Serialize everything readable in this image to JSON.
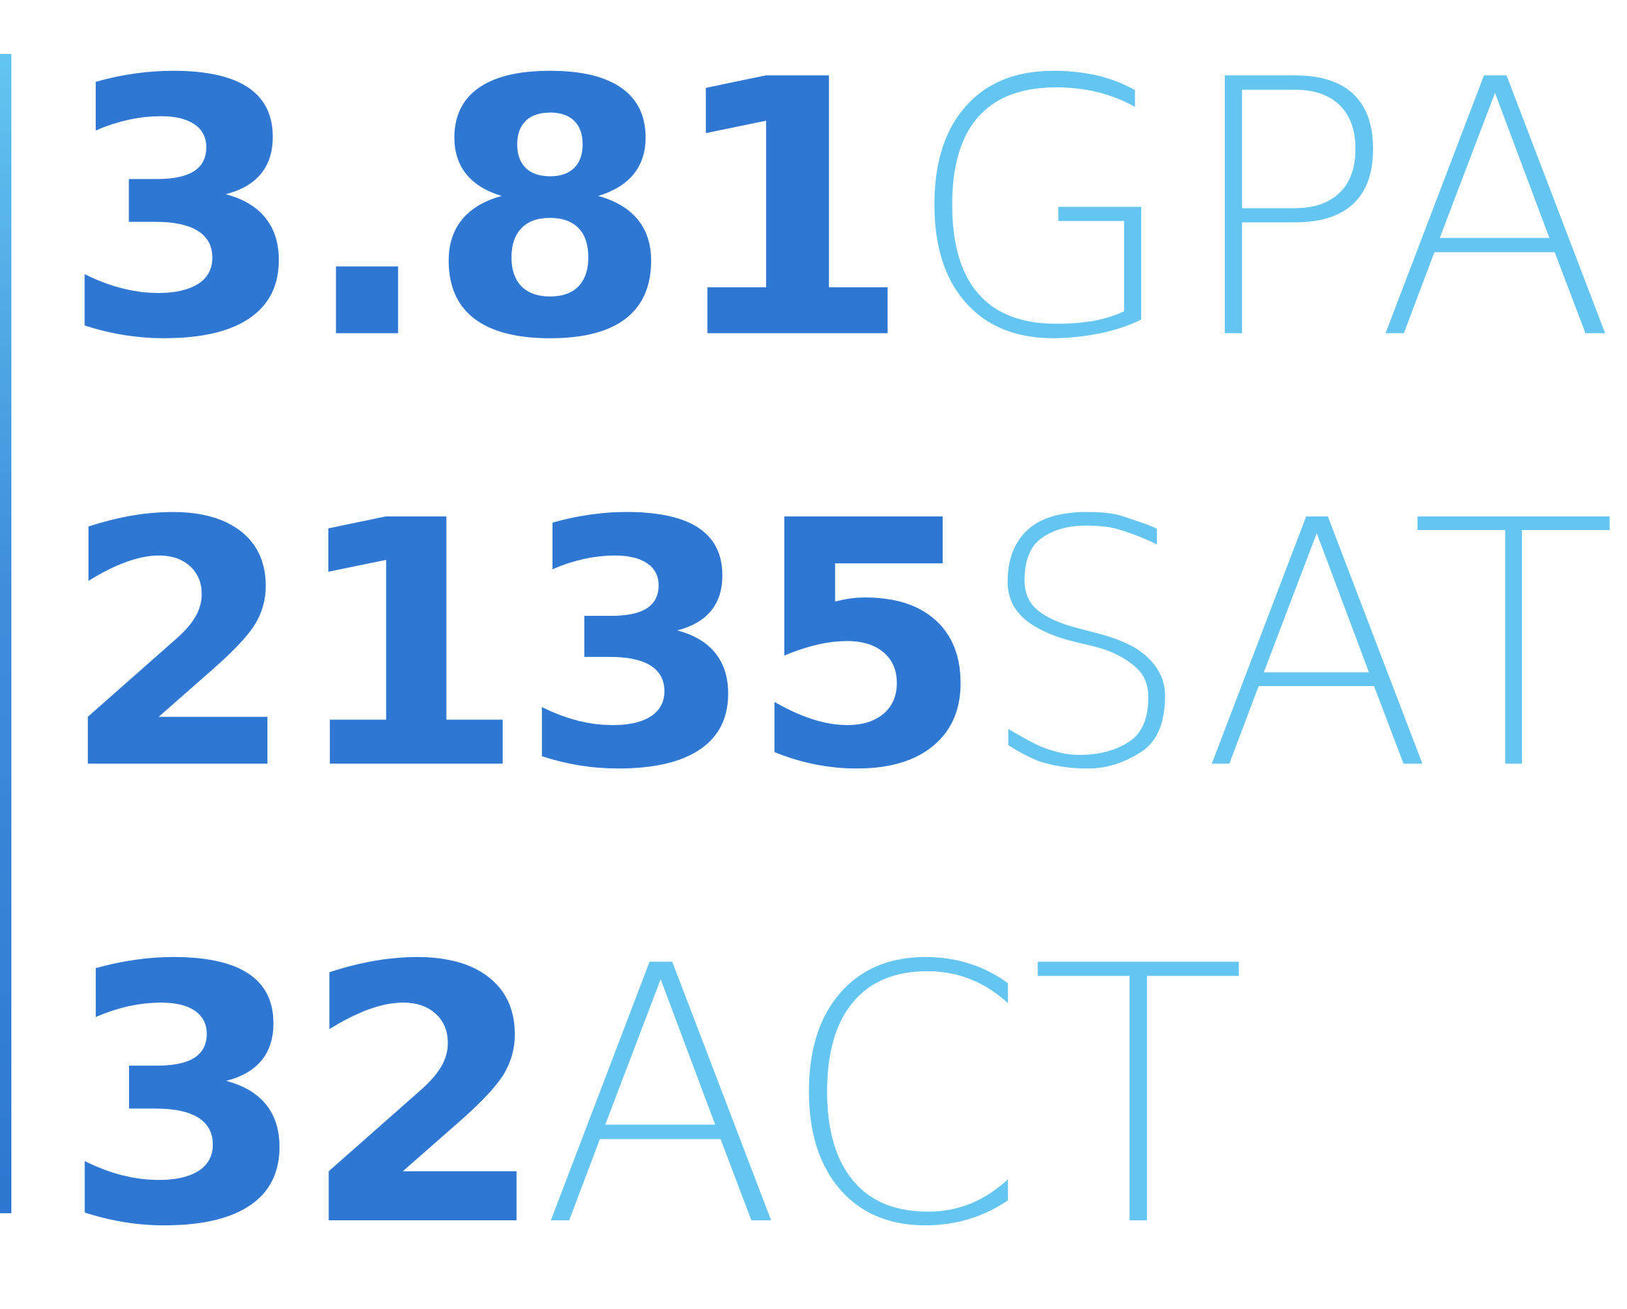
{
  "colors": {
    "number": "#2e77d2",
    "label": "#63c5f0",
    "divider": "#3f8fdc"
  },
  "stats": [
    {
      "value": "3.81",
      "label": "GPA"
    },
    {
      "value": "2135",
      "label": "SAT"
    },
    {
      "value": "32",
      "label": "ACT"
    }
  ]
}
